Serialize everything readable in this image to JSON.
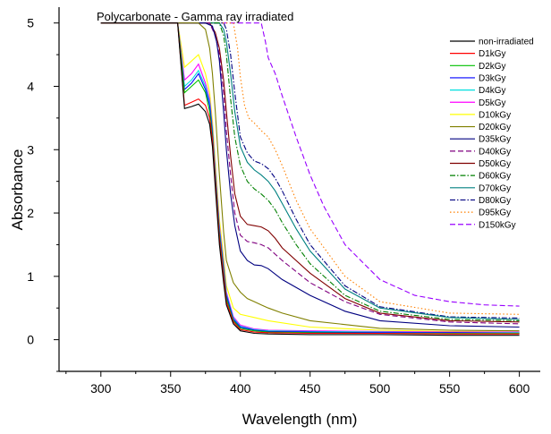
{
  "chart_data": {
    "type": "line",
    "title": "Polycarbonate - Gamma ray irradiated",
    "xlabel": "Wavelength (nm)",
    "ylabel": "Absorbance",
    "xlim": [
      270,
      615
    ],
    "ylim": [
      -0.5,
      5.25
    ],
    "xticks": [
      300,
      350,
      400,
      450,
      500,
      550,
      600
    ],
    "yticks": [
      0,
      1,
      2,
      3,
      4,
      5
    ],
    "grid": false,
    "legend_position": "top-right",
    "series": [
      {
        "name": "non-irradiated",
        "color": "#000000",
        "dash": "solid",
        "x": [
          300,
          355,
          360,
          365,
          370,
          375,
          378,
          380,
          382,
          385,
          388,
          390,
          395,
          400,
          410,
          420,
          450,
          500,
          550,
          600
        ],
        "y": [
          5.0,
          5.0,
          3.65,
          3.68,
          3.72,
          3.6,
          3.4,
          3.05,
          2.4,
          1.5,
          0.9,
          0.55,
          0.25,
          0.14,
          0.1,
          0.09,
          0.08,
          0.08,
          0.07,
          0.07
        ]
      },
      {
        "name": "D1kGy",
        "color": "#ff0000",
        "dash": "solid",
        "x": [
          300,
          355,
          360,
          365,
          370,
          375,
          378,
          380,
          382,
          385,
          388,
          390,
          395,
          400,
          410,
          420,
          450,
          500,
          550,
          600
        ],
        "y": [
          5.0,
          5.0,
          3.7,
          3.75,
          3.8,
          3.7,
          3.5,
          3.15,
          2.5,
          1.6,
          1.0,
          0.6,
          0.28,
          0.16,
          0.12,
          0.11,
          0.1,
          0.1,
          0.09,
          0.09
        ]
      },
      {
        "name": "D2kGy",
        "color": "#00c000",
        "dash": "solid",
        "x": [
          300,
          355,
          360,
          365,
          370,
          375,
          378,
          380,
          382,
          385,
          388,
          390,
          395,
          400,
          410,
          420,
          450,
          500,
          550,
          600
        ],
        "y": [
          5.0,
          5.0,
          3.9,
          4.0,
          4.1,
          3.9,
          3.6,
          3.2,
          2.55,
          1.65,
          1.05,
          0.65,
          0.3,
          0.18,
          0.14,
          0.12,
          0.11,
          0.1,
          0.1,
          0.1
        ]
      },
      {
        "name": "D3kGy",
        "color": "#0000ff",
        "dash": "solid",
        "x": [
          300,
          355,
          360,
          365,
          370,
          375,
          378,
          380,
          382,
          385,
          388,
          390,
          395,
          400,
          410,
          420,
          450,
          500,
          550,
          600
        ],
        "y": [
          5.0,
          5.0,
          3.95,
          4.05,
          4.2,
          3.95,
          3.7,
          3.25,
          2.6,
          1.7,
          1.1,
          0.7,
          0.32,
          0.2,
          0.15,
          0.13,
          0.12,
          0.11,
          0.11,
          0.1
        ]
      },
      {
        "name": "D4kGy",
        "color": "#00e0e0",
        "dash": "solid",
        "x": [
          300,
          355,
          360,
          365,
          370,
          375,
          378,
          380,
          382,
          385,
          388,
          390,
          395,
          400,
          410,
          420,
          450,
          500,
          550,
          600
        ],
        "y": [
          5.0,
          5.0,
          4.0,
          4.1,
          4.25,
          4.0,
          3.75,
          3.3,
          2.65,
          1.75,
          1.15,
          0.72,
          0.34,
          0.21,
          0.16,
          0.14,
          0.13,
          0.12,
          0.11,
          0.11
        ]
      },
      {
        "name": "D5kGy",
        "color": "#ff00ff",
        "dash": "solid",
        "x": [
          300,
          355,
          360,
          365,
          370,
          375,
          378,
          380,
          382,
          385,
          388,
          390,
          395,
          400,
          410,
          420,
          450,
          500,
          550,
          600
        ],
        "y": [
          5.0,
          5.0,
          4.1,
          4.2,
          4.35,
          4.05,
          3.8,
          3.35,
          2.7,
          1.8,
          1.2,
          0.75,
          0.36,
          0.23,
          0.17,
          0.15,
          0.14,
          0.13,
          0.12,
          0.12
        ]
      },
      {
        "name": "D10kGy",
        "color": "#ffff00",
        "dash": "solid",
        "x": [
          300,
          355,
          360,
          365,
          370,
          375,
          378,
          380,
          382,
          385,
          388,
          390,
          395,
          400,
          410,
          420,
          450,
          500,
          550,
          600
        ],
        "y": [
          5.0,
          5.0,
          4.3,
          4.4,
          4.5,
          4.2,
          3.9,
          3.45,
          2.8,
          1.9,
          1.3,
          0.85,
          0.5,
          0.4,
          0.35,
          0.3,
          0.2,
          0.15,
          0.13,
          0.12
        ]
      },
      {
        "name": "D20kGy",
        "color": "#808000",
        "dash": "solid",
        "x": [
          300,
          370,
          375,
          378,
          380,
          382,
          385,
          388,
          390,
          395,
          400,
          405,
          410,
          415,
          420,
          430,
          450,
          500,
          550,
          600
        ],
        "y": [
          5.0,
          5.0,
          4.9,
          4.6,
          4.2,
          3.6,
          2.6,
          1.7,
          1.25,
          0.9,
          0.75,
          0.65,
          0.6,
          0.55,
          0.5,
          0.42,
          0.3,
          0.18,
          0.15,
          0.14
        ]
      },
      {
        "name": "D35kGy",
        "color": "#000080",
        "dash": "solid",
        "x": [
          300,
          375,
          380,
          383,
          385,
          388,
          390,
          393,
          396,
          400,
          405,
          410,
          415,
          420,
          430,
          450,
          475,
          500,
          550,
          600
        ],
        "y": [
          5.0,
          5.0,
          4.95,
          4.7,
          4.4,
          3.6,
          3.0,
          2.3,
          1.8,
          1.4,
          1.25,
          1.18,
          1.17,
          1.12,
          0.95,
          0.7,
          0.45,
          0.3,
          0.22,
          0.2
        ]
      },
      {
        "name": "D40kGy",
        "color": "#800080",
        "dash": "dashed",
        "x": [
          300,
          378,
          382,
          385,
          388,
          390,
          393,
          396,
          400,
          405,
          410,
          415,
          420,
          425,
          430,
          450,
          475,
          500,
          550,
          600
        ],
        "y": [
          5.0,
          5.0,
          4.8,
          4.5,
          3.9,
          3.3,
          2.6,
          2.0,
          1.65,
          1.55,
          1.53,
          1.5,
          1.45,
          1.35,
          1.25,
          0.9,
          0.6,
          0.4,
          0.28,
          0.25
        ]
      },
      {
        "name": "D50kGy",
        "color": "#800000",
        "dash": "solid",
        "x": [
          300,
          378,
          382,
          385,
          388,
          390,
          393,
          396,
          400,
          405,
          410,
          415,
          420,
          425,
          430,
          450,
          475,
          500,
          550,
          600
        ],
        "y": [
          5.0,
          5.0,
          4.85,
          4.6,
          4.1,
          3.6,
          2.9,
          2.3,
          1.95,
          1.82,
          1.8,
          1.78,
          1.72,
          1.6,
          1.45,
          1.05,
          0.65,
          0.42,
          0.3,
          0.28
        ]
      },
      {
        "name": "D60kGy",
        "color": "#008000",
        "dash": "dashdot",
        "x": [
          300,
          385,
          388,
          390,
          393,
          396,
          400,
          405,
          410,
          415,
          420,
          425,
          430,
          440,
          450,
          475,
          500,
          550,
          600
        ],
        "y": [
          5.0,
          5.0,
          4.8,
          4.5,
          3.8,
          3.2,
          2.75,
          2.5,
          2.38,
          2.3,
          2.2,
          2.05,
          1.85,
          1.5,
          1.2,
          0.7,
          0.45,
          0.32,
          0.3
        ]
      },
      {
        "name": "D70kGy",
        "color": "#008080",
        "dash": "solid",
        "x": [
          300,
          385,
          388,
          390,
          393,
          396,
          400,
          405,
          410,
          415,
          420,
          425,
          430,
          440,
          450,
          475,
          500,
          550,
          600
        ],
        "y": [
          5.0,
          5.0,
          4.9,
          4.7,
          4.2,
          3.6,
          3.05,
          2.8,
          2.68,
          2.6,
          2.5,
          2.35,
          2.15,
          1.75,
          1.4,
          0.8,
          0.5,
          0.35,
          0.32
        ]
      },
      {
        "name": "D80kGy",
        "color": "#000080",
        "dash": "dashdot",
        "x": [
          300,
          388,
          390,
          393,
          396,
          400,
          405,
          410,
          415,
          420,
          425,
          430,
          440,
          450,
          475,
          500,
          550,
          600
        ],
        "y": [
          5.0,
          5.0,
          4.9,
          4.5,
          3.9,
          3.2,
          2.95,
          2.82,
          2.78,
          2.7,
          2.55,
          2.35,
          1.9,
          1.5,
          0.85,
          0.52,
          0.36,
          0.34
        ]
      },
      {
        "name": "D95kGy",
        "color": "#ff8000",
        "dash": "dotted",
        "x": [
          300,
          395,
          398,
          400,
          403,
          406,
          410,
          415,
          420,
          425,
          430,
          440,
          450,
          475,
          500,
          550,
          600
        ],
        "y": [
          5.0,
          5.0,
          4.6,
          4.15,
          3.7,
          3.5,
          3.42,
          3.3,
          3.2,
          3.0,
          2.75,
          2.2,
          1.75,
          1.0,
          0.6,
          0.42,
          0.4
        ]
      },
      {
        "name": "D150kGy",
        "color": "#9900ff",
        "dash": "dashed",
        "x": [
          300,
          415,
          418,
          420,
          422,
          425,
          430,
          440,
          450,
          460,
          475,
          500,
          525,
          550,
          575,
          600
        ],
        "y": [
          5.0,
          5.0,
          4.7,
          4.45,
          4.35,
          4.2,
          3.85,
          3.2,
          2.6,
          2.1,
          1.5,
          0.95,
          0.7,
          0.6,
          0.55,
          0.53
        ]
      }
    ]
  }
}
